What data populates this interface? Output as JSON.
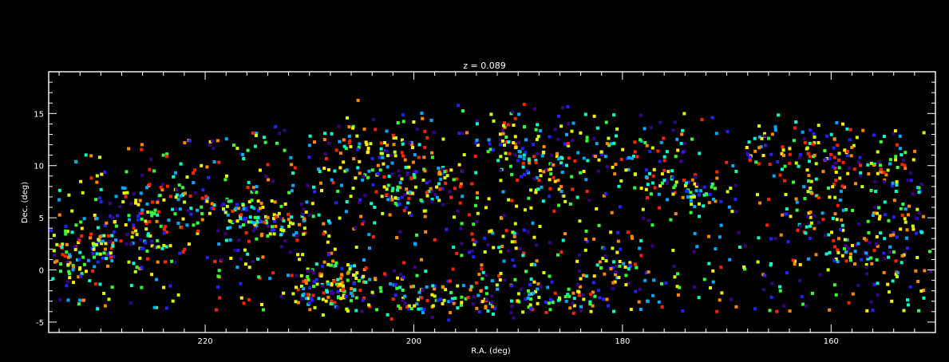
{
  "chart_data": {
    "type": "scatter",
    "title": "z = 0.089",
    "xlabel": "R.A. (deg)",
    "ylabel": "Dec. (deg)",
    "xlim": [
      235,
      150
    ],
    "ylim": [
      -6,
      19
    ],
    "x_ticks": [
      220,
      200,
      180,
      160
    ],
    "y_ticks": [
      -5,
      0,
      5,
      10,
      15
    ],
    "grid": false,
    "legend": "none",
    "background": "#000000",
    "frame_color": "#ffffff",
    "marker": "square",
    "colormap": "rainbow",
    "colormap_colors": [
      "#3a0088",
      "#2222ff",
      "#00aaff",
      "#00ffcc",
      "#33ff33",
      "#ccff00",
      "#ffee00",
      "#ff8800",
      "#ff2200"
    ],
    "structures": [
      {
        "ra": [
          235,
          224
        ],
        "dec": [
          1.0,
          4.0
        ],
        "scatter": 1.4,
        "count": 140
      },
      {
        "ra": [
          228,
          214
        ],
        "dec": [
          6.5,
          5.0
        ],
        "scatter": 1.2,
        "count": 100
      },
      {
        "ra": [
          218,
          208
        ],
        "dec": [
          5.5,
          4.0
        ],
        "scatter": 1.0,
        "count": 70
      },
      {
        "ra": [
          212,
          196
        ],
        "dec": [
          -2.0,
          -2.5
        ],
        "scatter": 0.9,
        "count": 130
      },
      {
        "ra": [
          196,
          182
        ],
        "dec": [
          -2.8,
          -3.0
        ],
        "scatter": 0.8,
        "count": 90
      },
      {
        "ra": [
          204,
          196
        ],
        "dec": [
          8.0,
          8.0
        ],
        "scatter": 1.6,
        "count": 90
      },
      {
        "ra": [
          193,
          184
        ],
        "dec": [
          12.5,
          7.5
        ],
        "scatter": 1.4,
        "count": 80
      },
      {
        "ra": [
          190,
          175
        ],
        "dec": [
          12.0,
          10.0
        ],
        "scatter": 1.2,
        "count": 60
      },
      {
        "ra": [
          177,
          170
        ],
        "dec": [
          8.5,
          6.5
        ],
        "scatter": 1.0,
        "count": 60
      },
      {
        "ra": [
          168,
          152
        ],
        "dec": [
          12.0,
          9.0
        ],
        "scatter": 1.6,
        "count": 130
      },
      {
        "ra": [
          160,
          150
        ],
        "dec": [
          2.0,
          0.5
        ],
        "scatter": 1.2,
        "count": 60
      },
      {
        "ra": [
          208,
          200
        ],
        "dec": [
          12.0,
          10.5
        ],
        "scatter": 1.5,
        "count": 60
      },
      {
        "ra": [
          210,
          205
        ],
        "dec": [
          0.0,
          -1.5
        ],
        "scatter": 1.3,
        "count": 50
      },
      {
        "ra": [
          195,
          188
        ],
        "dec": [
          4.0,
          0.0
        ],
        "scatter": 1.6,
        "count": 50
      },
      {
        "ra": [
          182,
          178
        ],
        "dec": [
          2.0,
          -2.0
        ],
        "scatter": 1.3,
        "count": 40
      },
      {
        "ra": [
          165,
          152
        ],
        "dec": [
          5.0,
          4.5
        ],
        "scatter": 1.5,
        "count": 60
      }
    ],
    "field_points": 900,
    "field_dec_range": [
      -4,
      16
    ],
    "field_ra_range": [
      234,
      151
    ],
    "survey_top_edge_dec": [
      [
        235,
        11
      ],
      [
        228,
        12
      ],
      [
        220,
        13
      ],
      [
        212,
        14
      ],
      [
        205,
        15
      ],
      [
        195,
        16
      ],
      [
        185,
        16
      ],
      [
        175,
        15.5
      ],
      [
        165,
        15
      ],
      [
        155,
        14.5
      ],
      [
        150,
        13
      ]
    ]
  }
}
